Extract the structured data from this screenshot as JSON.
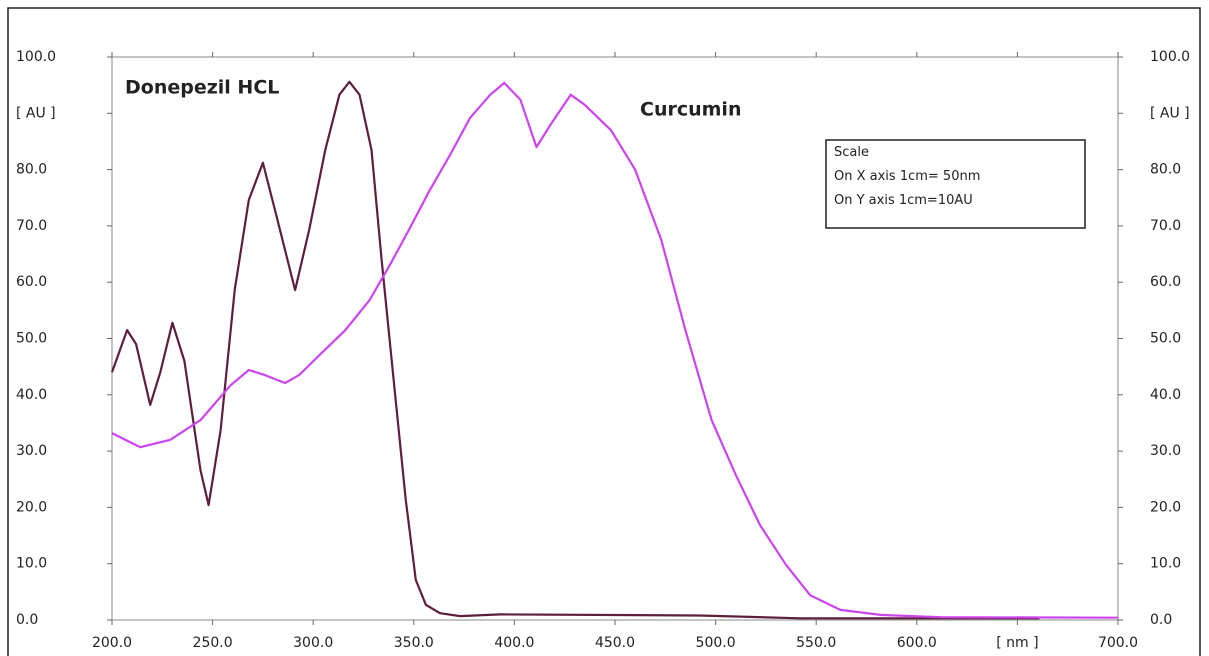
{
  "chart_data": {
    "type": "line",
    "xlim": [
      200,
      700
    ],
    "ylim": [
      0,
      100
    ],
    "y2lim": [
      0,
      100
    ],
    "grid": false,
    "xticks": [
      {
        "value": 200,
        "label": "200.0"
      },
      {
        "value": 250,
        "label": "250.0"
      },
      {
        "value": 300,
        "label": "300.0"
      },
      {
        "value": 350,
        "label": "350.0"
      },
      {
        "value": 400,
        "label": "400.0"
      },
      {
        "value": 450,
        "label": "450.0"
      },
      {
        "value": 500,
        "label": "500.0"
      },
      {
        "value": 550,
        "label": "550.0"
      },
      {
        "value": 600,
        "label": "600.0"
      },
      {
        "value": 650,
        "label": "[ nm ]"
      },
      {
        "value": 700,
        "label": "700.0"
      }
    ],
    "yticks": [
      {
        "value": 0,
        "label": "0.0"
      },
      {
        "value": 10,
        "label": "10.0"
      },
      {
        "value": 20,
        "label": "20.0"
      },
      {
        "value": 30,
        "label": "30.0"
      },
      {
        "value": 40,
        "label": "40.0"
      },
      {
        "value": 50,
        "label": "50.0"
      },
      {
        "value": 60,
        "label": "60.0"
      },
      {
        "value": 70,
        "label": "70.0"
      },
      {
        "value": 80,
        "label": "80.0"
      },
      {
        "value": 90,
        "label": "[ AU ]"
      },
      {
        "value": 100,
        "label": "100.0"
      }
    ],
    "y2ticks": [
      {
        "value": 0,
        "label": "0.0"
      },
      {
        "value": 10,
        "label": "10.0"
      },
      {
        "value": 20,
        "label": "20.0"
      },
      {
        "value": 30,
        "label": "30.0"
      },
      {
        "value": 40,
        "label": "40.0"
      },
      {
        "value": 50,
        "label": "50.0"
      },
      {
        "value": 60,
        "label": "60.0"
      },
      {
        "value": 70,
        "label": "70.0"
      },
      {
        "value": 80,
        "label": "80.0"
      },
      {
        "value": 90,
        "label": "[ AU ]"
      },
      {
        "value": 100,
        "label": "100.0"
      }
    ],
    "series": [
      {
        "name": "Donepezil HCL",
        "color": "#5e1e3e",
        "x": [
          200,
          207.5,
          212,
          219,
          224,
          230,
          236,
          244,
          248,
          254,
          261,
          268,
          275,
          281,
          291,
          298,
          306,
          313,
          318,
          323,
          329,
          334,
          341,
          346,
          351,
          356,
          363,
          373,
          393,
          492,
          542,
          661
        ],
        "values": [
          44,
          51.5,
          49,
          38.2,
          44,
          52.8,
          46,
          26.6,
          20.4,
          33.7,
          58.6,
          74.6,
          81.2,
          72.8,
          58.6,
          69.3,
          83.5,
          93.3,
          95.6,
          93.3,
          83.5,
          64,
          39,
          21.3,
          7.1,
          2.7,
          1.2,
          0.7,
          1.0,
          0.8,
          0.3,
          0.3
        ]
      },
      {
        "name": "Curcumin",
        "color": "#cc44ee",
        "x": [
          200,
          214,
          229,
          244,
          259,
          268,
          276,
          286,
          293,
          303,
          316,
          328,
          338,
          348,
          358,
          368,
          378,
          388,
          395,
          403,
          411,
          418,
          428,
          435,
          448,
          460,
          473,
          485,
          498,
          510,
          522,
          535,
          547,
          562,
          582,
          612,
          700
        ],
        "values": [
          33.2,
          30.7,
          32,
          35.5,
          41.7,
          44.4,
          43.5,
          42.1,
          43.5,
          47,
          51.5,
          56.8,
          63,
          69.6,
          76.4,
          82.6,
          89.2,
          93.3,
          95.4,
          92.4,
          84,
          88,
          93.3,
          91.5,
          87,
          80,
          67.5,
          51.5,
          35.5,
          25.8,
          16.9,
          9.8,
          4.4,
          1.8,
          0.9,
          0.5,
          0.4
        ]
      }
    ],
    "scale_note": [
      "Scale",
      "On X axis 1cm= 50nm",
      "On Y axis 1cm=10AU"
    ]
  }
}
